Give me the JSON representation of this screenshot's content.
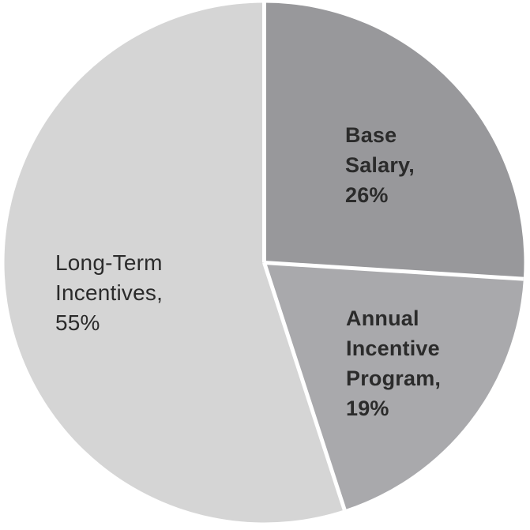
{
  "chart_data": {
    "type": "pie",
    "title": "",
    "categories": [
      "Base Salary",
      "Annual Incentive Program",
      "Long-Term Incentives"
    ],
    "values": [
      26,
      19,
      55
    ],
    "unit": "%",
    "direction": "clockwise",
    "start_angle_deg": 0,
    "legend": "none",
    "label_position": "inside",
    "background_color": "#ffffff",
    "separator_color": "#ffffff",
    "text_color": "#2b2b2b",
    "slices": [
      {
        "id": "base-salary",
        "label": "Base Salary",
        "value": 26,
        "color": "#98989b",
        "display": "Base\nSalary,\n26%",
        "bold": true
      },
      {
        "id": "annual-incentive-program",
        "label": "Annual Incentive Program",
        "value": 19,
        "color": "#a9a9ac",
        "display": "Annual\nIncentive\nProgram,\n19%",
        "bold": true
      },
      {
        "id": "long-term-incentives",
        "label": "Long-Term Incentives",
        "value": 55,
        "color": "#d5d5d5",
        "display": "Long-Term\nIncentives,\n55%",
        "bold": false
      }
    ]
  }
}
